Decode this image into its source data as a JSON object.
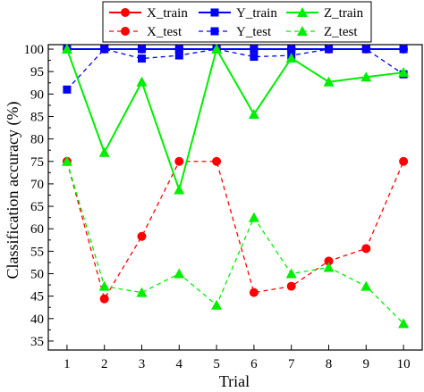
{
  "chart_data": {
    "type": "line",
    "xlabel": "Trial",
    "ylabel": "Classification accuracy (%)",
    "x": [
      1,
      2,
      3,
      4,
      5,
      6,
      7,
      8,
      9,
      10
    ],
    "xlim": [
      0.5,
      10.5
    ],
    "ylim": [
      33,
      101
    ],
    "xticks": [
      "1",
      "2",
      "3",
      "4",
      "5",
      "6",
      "7",
      "8",
      "9",
      "10"
    ],
    "yticks": [
      "35",
      "40",
      "45",
      "50",
      "55",
      "60",
      "65",
      "70",
      "75",
      "80",
      "85",
      "90",
      "95",
      "100"
    ],
    "grid": false,
    "legend_position": "top",
    "series": [
      {
        "name": "X_train",
        "color": "#ff0000",
        "marker": "circle",
        "dash": "solid",
        "values": [
          100,
          100,
          100,
          100,
          100,
          100,
          100,
          100,
          100,
          100
        ]
      },
      {
        "name": "Y_train",
        "color": "#0000ff",
        "marker": "square",
        "dash": "solid",
        "values": [
          100,
          100,
          100,
          100,
          100,
          100,
          100,
          100,
          100,
          100
        ]
      },
      {
        "name": "Z_train",
        "color": "#00ee00",
        "marker": "triangle",
        "dash": "solid",
        "values": [
          100,
          77,
          92.7,
          68.7,
          100,
          85.5,
          98,
          92.7,
          93.8,
          94.8
        ]
      },
      {
        "name": "X_test",
        "color": "#ff0000",
        "marker": "circle",
        "dash": "dashed",
        "values": [
          75,
          44.4,
          58.3,
          75,
          75,
          45.8,
          47.2,
          52.8,
          55.6,
          75
        ]
      },
      {
        "name": "Y_test",
        "color": "#0000ff",
        "marker": "square",
        "dash": "dashed",
        "values": [
          91,
          100,
          97.9,
          98.6,
          100,
          98.3,
          98.6,
          100,
          100,
          94.4
        ]
      },
      {
        "name": "Z_test",
        "color": "#00ee00",
        "marker": "triangle",
        "dash": "dashed",
        "values": [
          75,
          47.2,
          45.8,
          50,
          43,
          62.5,
          50,
          51.4,
          47.2,
          38.9
        ]
      }
    ]
  }
}
